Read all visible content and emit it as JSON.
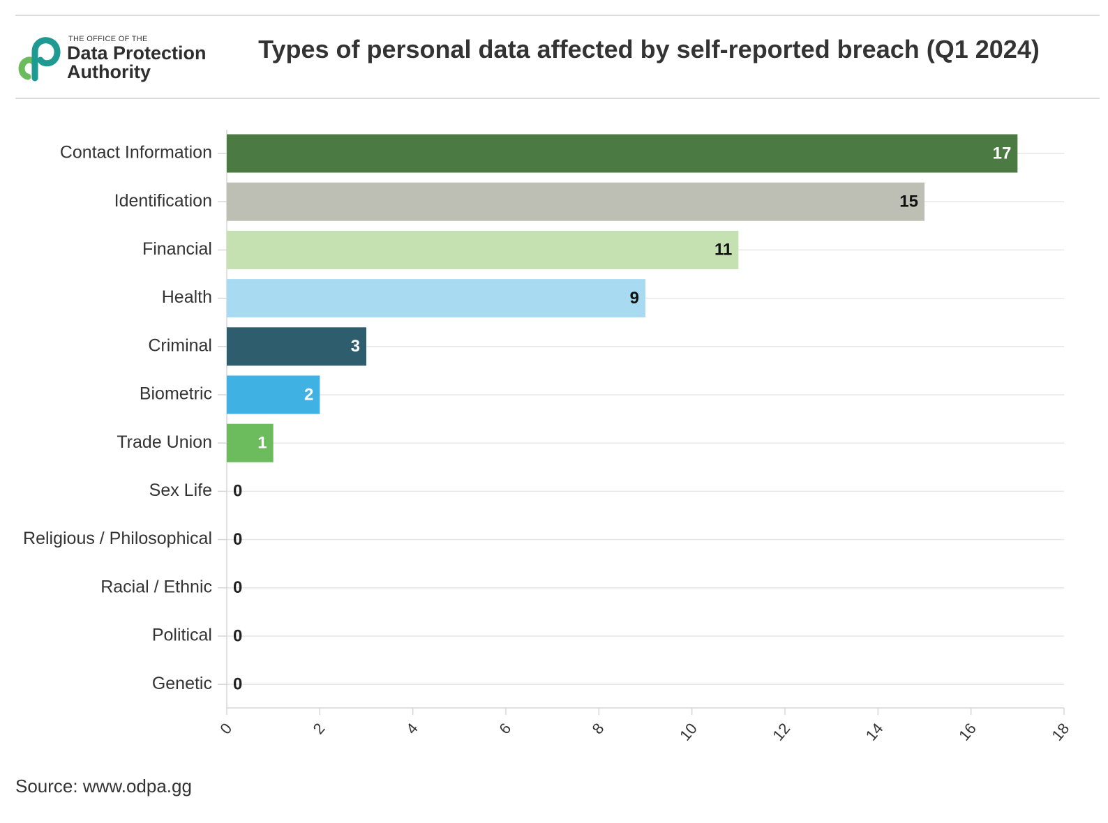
{
  "header": {
    "logo_small": "THE OFFICE OF THE",
    "logo_line1": "Data Protection",
    "logo_line2": "Authority",
    "title": "Types of personal data affected by self-reported breach (Q1 2024)"
  },
  "footer": {
    "source": "Source: www.odpa.gg"
  },
  "chart_data": {
    "type": "bar",
    "orientation": "horizontal",
    "title": "Types of personal data affected by self-reported breach (Q1 2024)",
    "xlabel": "",
    "ylabel": "",
    "xlim": [
      0,
      18
    ],
    "xticks": [
      0,
      2,
      4,
      6,
      8,
      10,
      12,
      14,
      16,
      18
    ],
    "grid": true,
    "categories": [
      "Contact Information",
      "Identification",
      "Financial",
      "Health",
      "Criminal",
      "Biometric",
      "Trade Union",
      "Sex Life",
      "Religious / Philosophical",
      "Racial / Ethnic",
      "Political",
      "Genetic"
    ],
    "values": [
      17,
      15,
      11,
      9,
      3,
      2,
      1,
      0,
      0,
      0,
      0,
      0
    ],
    "colors": [
      "#4c7a43",
      "#bdbfb4",
      "#c5e1b2",
      "#a8dbf1",
      "#2e5d6e",
      "#3fb1e3",
      "#6cbb5d",
      "#999999",
      "#999999",
      "#999999",
      "#999999",
      "#999999"
    ],
    "label_colors": [
      "#ffffff",
      "#111111",
      "#111111",
      "#111111",
      "#ffffff",
      "#ffffff",
      "#ffffff",
      "#222222",
      "#222222",
      "#222222",
      "#222222",
      "#222222"
    ]
  }
}
